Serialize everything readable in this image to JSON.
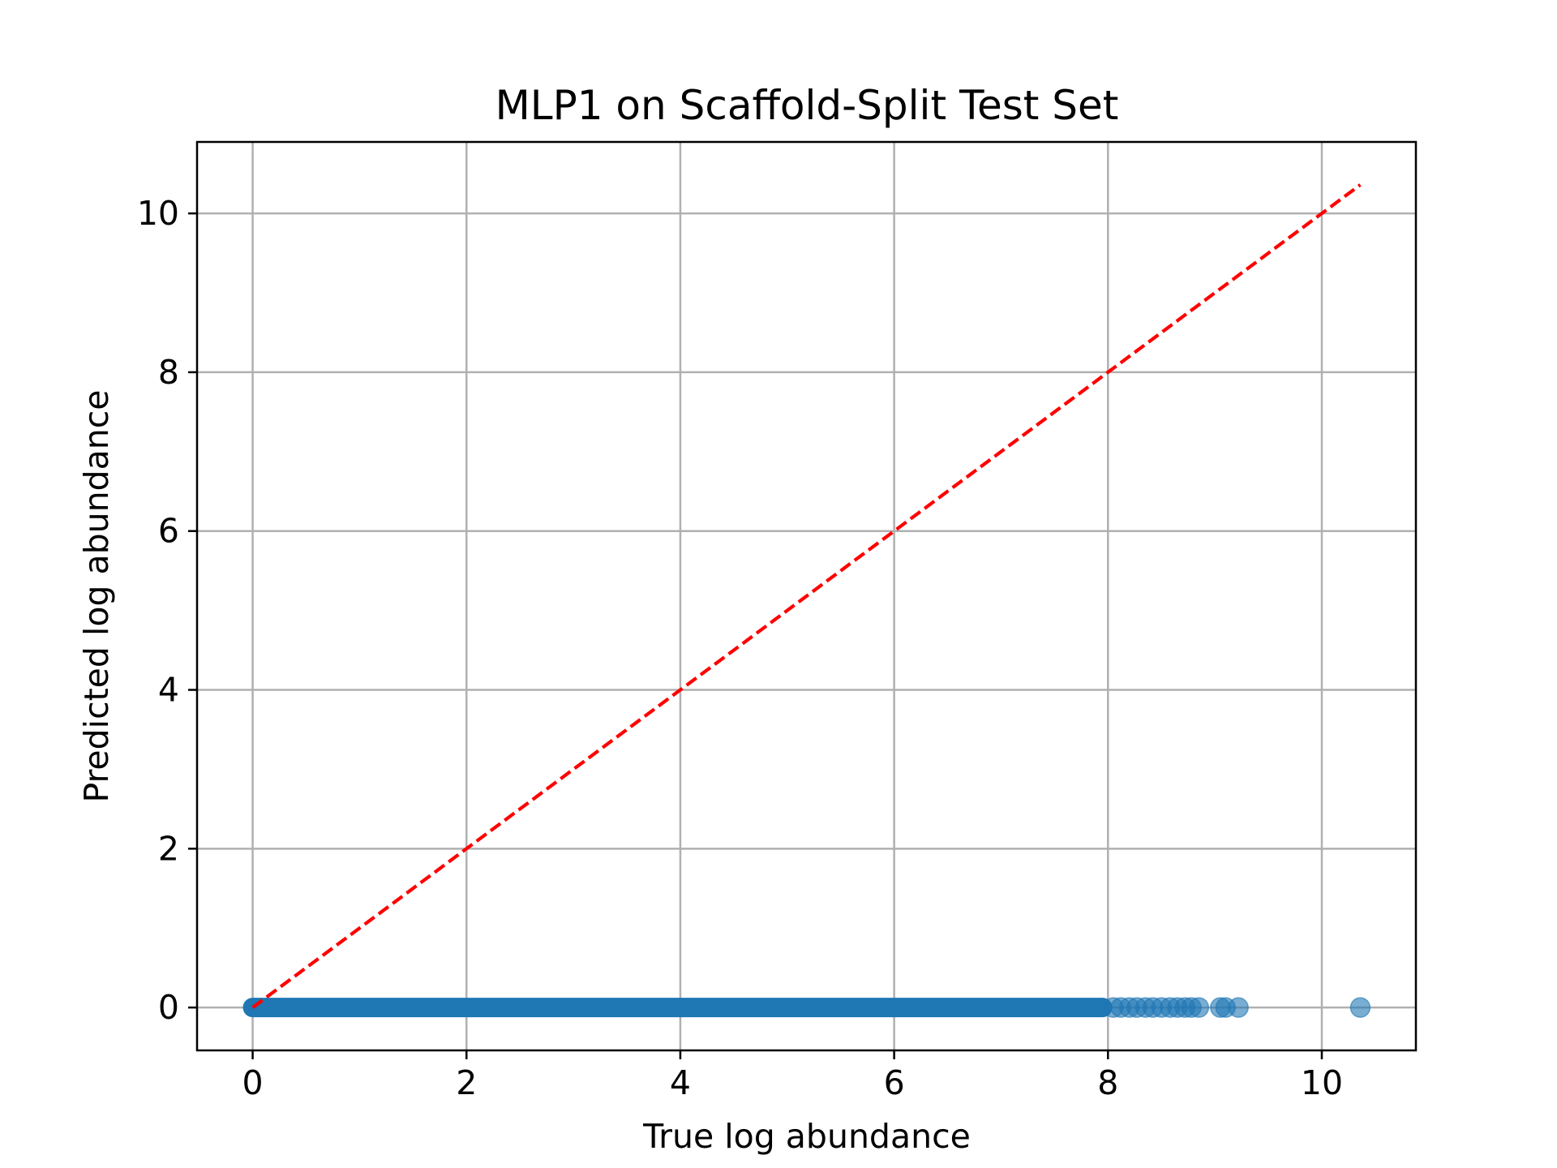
{
  "chart_data": {
    "type": "scatter",
    "title": "MLP1 on Scaffold-Split Test Set",
    "xlabel": "True log abundance",
    "ylabel": "Predicted log abundance",
    "xlim": [
      -0.52,
      10.88
    ],
    "ylim": [
      -0.54,
      10.9
    ],
    "xticks": [
      0,
      2,
      4,
      6,
      8,
      10
    ],
    "yticks": [
      0,
      2,
      4,
      6,
      8,
      10
    ],
    "xtick_labels": [
      "0",
      "2",
      "4",
      "6",
      "8",
      "10"
    ],
    "ytick_labels": [
      "0",
      "2",
      "4",
      "6",
      "8",
      "10"
    ],
    "grid": true,
    "series": [
      {
        "kind": "scatter",
        "color": "#1f77b4",
        "alpha": 0.6,
        "x_dense_range": [
          0,
          7.95
        ],
        "y_dense_value": 0,
        "points": [
          {
            "x": 8.05,
            "y": 0
          },
          {
            "x": 8.12,
            "y": 0
          },
          {
            "x": 8.2,
            "y": 0
          },
          {
            "x": 8.27,
            "y": 0
          },
          {
            "x": 8.35,
            "y": 0
          },
          {
            "x": 8.42,
            "y": 0
          },
          {
            "x": 8.5,
            "y": 0
          },
          {
            "x": 8.58,
            "y": 0
          },
          {
            "x": 8.65,
            "y": 0
          },
          {
            "x": 8.72,
            "y": 0
          },
          {
            "x": 8.78,
            "y": 0
          },
          {
            "x": 8.85,
            "y": 0
          },
          {
            "x": 9.05,
            "y": 0
          },
          {
            "x": 9.1,
            "y": 0
          },
          {
            "x": 9.22,
            "y": 0
          },
          {
            "x": 10.36,
            "y": 0
          }
        ]
      },
      {
        "kind": "reference-line",
        "color": "#ff0000",
        "dash": "dashed",
        "x": [
          0,
          10.36
        ],
        "y": [
          0,
          10.36
        ]
      }
    ]
  }
}
